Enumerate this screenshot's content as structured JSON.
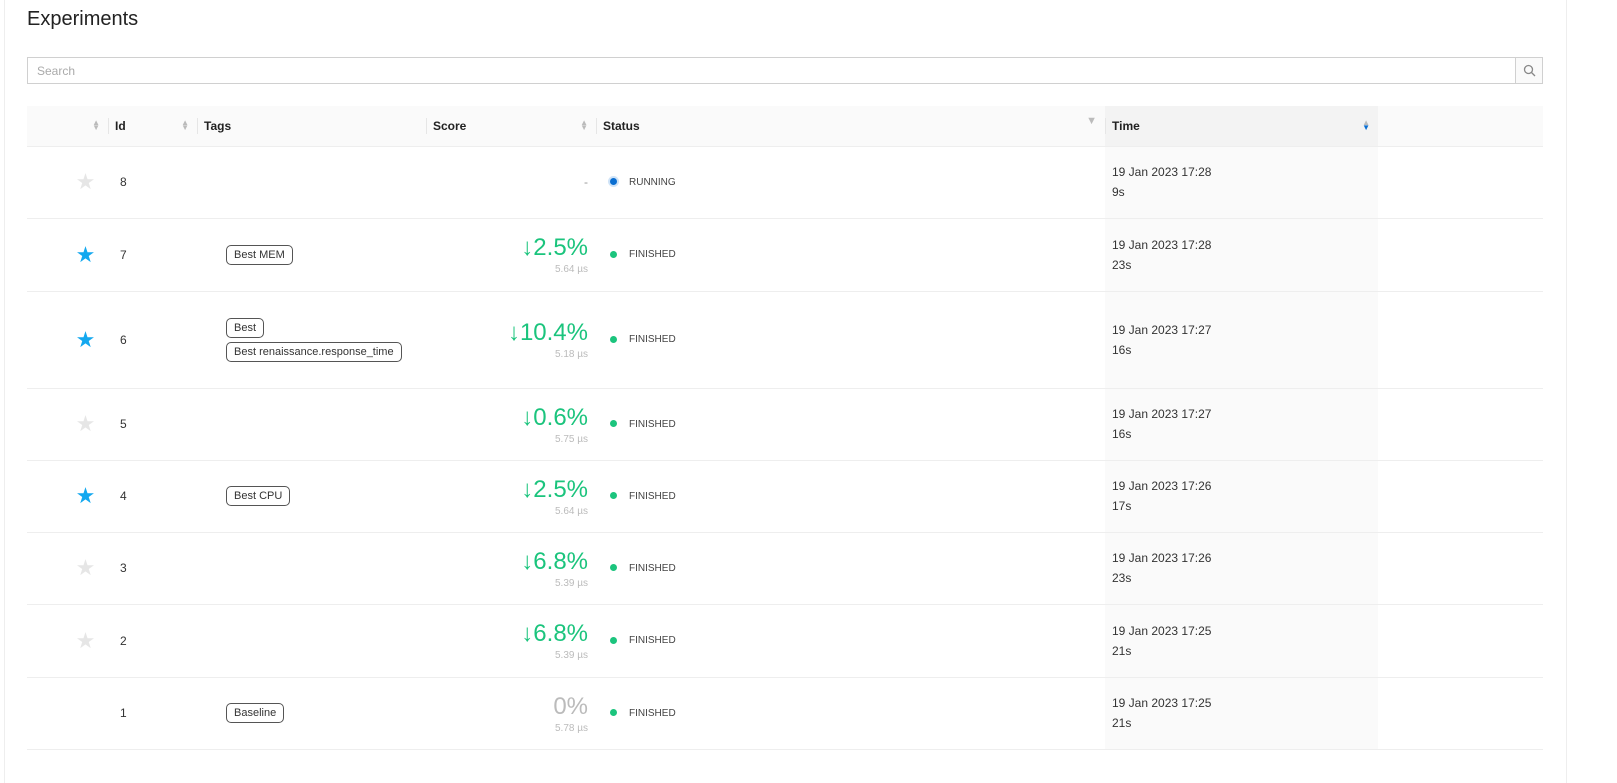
{
  "title": "Experiments",
  "search": {
    "placeholder": "Search",
    "value": ""
  },
  "columns": {
    "id": "Id",
    "tags": "Tags",
    "score": "Score",
    "status": "Status",
    "time": "Time"
  },
  "colors": {
    "accent": "#13a8ef",
    "finished": "#1bc47d",
    "running": "#0a6ed1",
    "score_good": "#1bc47d"
  },
  "rows": [
    {
      "starred": false,
      "show_star": true,
      "id": "8",
      "tags": [],
      "score": "-",
      "score_sub": "",
      "status": "RUNNING",
      "date": "19 Jan 2023 17:28",
      "duration": "9s"
    },
    {
      "starred": true,
      "show_star": true,
      "id": "7",
      "tags": [
        "Best MEM"
      ],
      "score": "↓2.5%",
      "score_sub": "5.64 µs",
      "status": "FINISHED",
      "date": "19 Jan 2023 17:28",
      "duration": "23s"
    },
    {
      "starred": true,
      "show_star": true,
      "id": "6",
      "tags": [
        "Best",
        "Best renaissance.response_time"
      ],
      "score": "↓10.4%",
      "score_sub": "5.18 µs",
      "status": "FINISHED",
      "date": "19 Jan 2023 17:27",
      "duration": "16s"
    },
    {
      "starred": false,
      "show_star": true,
      "id": "5",
      "tags": [],
      "score": "↓0.6%",
      "score_sub": "5.75 µs",
      "status": "FINISHED",
      "date": "19 Jan 2023 17:27",
      "duration": "16s"
    },
    {
      "starred": true,
      "show_star": true,
      "id": "4",
      "tags": [
        "Best CPU"
      ],
      "score": "↓2.5%",
      "score_sub": "5.64 µs",
      "status": "FINISHED",
      "date": "19 Jan 2023 17:26",
      "duration": "17s"
    },
    {
      "starred": false,
      "show_star": true,
      "id": "3",
      "tags": [],
      "score": "↓6.8%",
      "score_sub": "5.39 µs",
      "status": "FINISHED",
      "date": "19 Jan 2023 17:26",
      "duration": "23s"
    },
    {
      "starred": false,
      "show_star": true,
      "id": "2",
      "tags": [],
      "score": "↓6.8%",
      "score_sub": "5.39 µs",
      "status": "FINISHED",
      "date": "19 Jan 2023 17:25",
      "duration": "21s"
    },
    {
      "starred": false,
      "show_star": false,
      "id": "1",
      "tags": [
        "Baseline"
      ],
      "score": "0%",
      "score_sub": "5.78 µs",
      "status": "FINISHED",
      "date": "19 Jan 2023 17:25",
      "duration": "21s"
    }
  ]
}
